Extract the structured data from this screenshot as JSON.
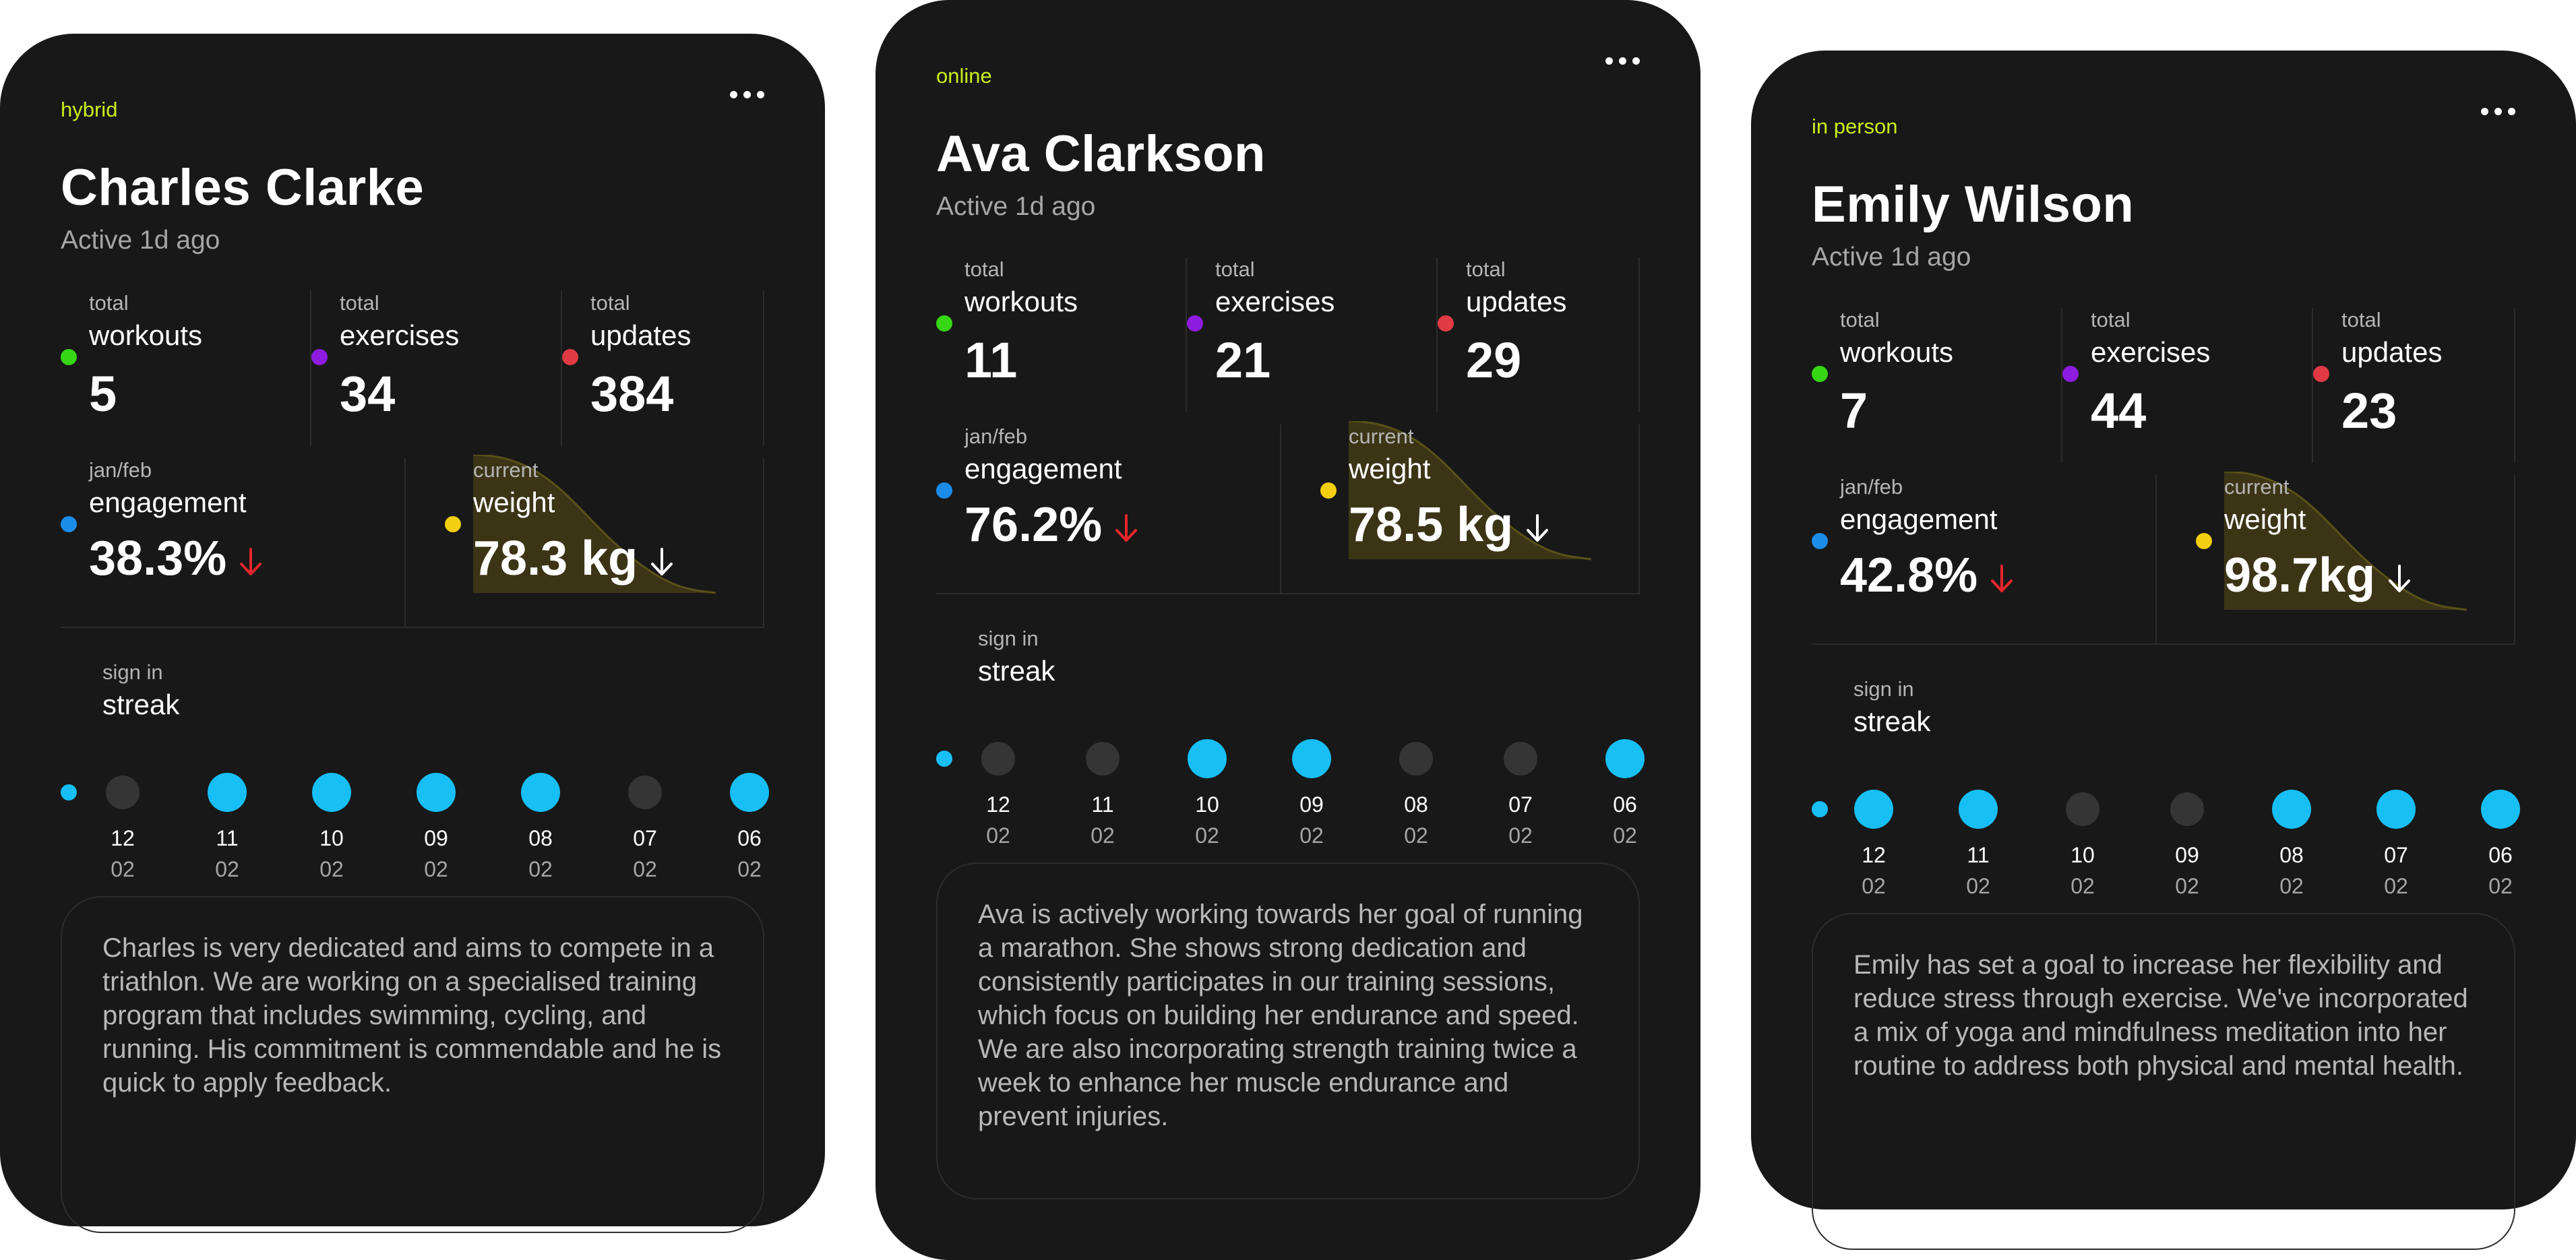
{
  "colors": {
    "workouts": "#37d615",
    "exercises": "#8e1be0",
    "updates": "#e23a44",
    "engagement": "#1b8ce8",
    "weight": "#f3cf0f",
    "streak_on": "#17bff5",
    "down_red": "#e6262c"
  },
  "cards": [
    {
      "mode": "hybrid",
      "name": "Charles Clarke",
      "active": "Active 1d ago",
      "totals": [
        {
          "sub": "total",
          "label": "workouts",
          "value": "5"
        },
        {
          "sub": "total",
          "label": "exercises",
          "value": "34"
        },
        {
          "sub": "total",
          "label": "updates",
          "value": "384"
        }
      ],
      "engagement": {
        "sub": "jan/feb",
        "label": "engagement",
        "value": "38.3%",
        "trend_icon": "arrow-down-icon"
      },
      "weight": {
        "sub": "current",
        "label": "weight",
        "value": "78.3 kg",
        "trend_icon": "arrow-down-icon"
      },
      "streak": {
        "sub": "sign in",
        "label": "streak",
        "days": [
          {
            "day": "12",
            "month": "02",
            "active": false
          },
          {
            "day": "11",
            "month": "02",
            "active": true
          },
          {
            "day": "10",
            "month": "02",
            "active": true
          },
          {
            "day": "09",
            "month": "02",
            "active": true
          },
          {
            "day": "08",
            "month": "02",
            "active": true
          },
          {
            "day": "07",
            "month": "02",
            "active": false
          },
          {
            "day": "06",
            "month": "02",
            "active": true
          }
        ]
      },
      "notes": "Charles is very dedicated and aims to compete in a triathlon. We are working on a specialised training program that includes swimming, cycling, and running. His commitment is commendable and he is quick to apply feedback."
    },
    {
      "mode": "online",
      "name": "Ava Clarkson",
      "active": "Active 1d ago",
      "totals": [
        {
          "sub": "total",
          "label": "workouts",
          "value": "11"
        },
        {
          "sub": "total",
          "label": "exercises",
          "value": "21"
        },
        {
          "sub": "total",
          "label": "updates",
          "value": "29"
        }
      ],
      "engagement": {
        "sub": "jan/feb",
        "label": "engagement",
        "value": "76.2%",
        "trend_icon": "arrow-down-icon"
      },
      "weight": {
        "sub": "current",
        "label": "weight",
        "value": "78.5 kg",
        "trend_icon": "arrow-down-icon"
      },
      "streak": {
        "sub": "sign in",
        "label": "streak",
        "days": [
          {
            "day": "12",
            "month": "02",
            "active": false
          },
          {
            "day": "11",
            "month": "02",
            "active": false
          },
          {
            "day": "10",
            "month": "02",
            "active": true
          },
          {
            "day": "09",
            "month": "02",
            "active": true
          },
          {
            "day": "08",
            "month": "02",
            "active": false
          },
          {
            "day": "07",
            "month": "02",
            "active": false
          },
          {
            "day": "06",
            "month": "02",
            "active": true
          }
        ]
      },
      "notes": "Ava is actively working towards her goal of running a marathon. She shows strong dedication and consistently participates in our training sessions, which focus on building her endurance and speed. We are also incorporating strength training twice a week to enhance her muscle endurance and prevent injuries."
    },
    {
      "mode": "in person",
      "name": "Emily Wilson",
      "active": "Active 1d ago",
      "totals": [
        {
          "sub": "total",
          "label": "workouts",
          "value": "7"
        },
        {
          "sub": "total",
          "label": "exercises",
          "value": "44"
        },
        {
          "sub": "total",
          "label": "updates",
          "value": "23"
        }
      ],
      "engagement": {
        "sub": "jan/feb",
        "label": "engagement",
        "value": "42.8%",
        "trend_icon": "arrow-down-icon"
      },
      "weight": {
        "sub": "current",
        "label": "weight",
        "value": "98.7kg",
        "trend_icon": "arrow-down-icon"
      },
      "streak": {
        "sub": "sign in",
        "label": "streak",
        "days": [
          {
            "day": "12",
            "month": "02",
            "active": true
          },
          {
            "day": "11",
            "month": "02",
            "active": true
          },
          {
            "day": "10",
            "month": "02",
            "active": false
          },
          {
            "day": "09",
            "month": "02",
            "active": false
          },
          {
            "day": "08",
            "month": "02",
            "active": true
          },
          {
            "day": "07",
            "month": "02",
            "active": true
          },
          {
            "day": "06",
            "month": "02",
            "active": true
          }
        ]
      },
      "notes": "Emily has set a goal to increase her flexibility and reduce stress through exercise. We've incorporated a mix of yoga and mindfulness meditation into her routine to address both physical and mental health."
    }
  ]
}
